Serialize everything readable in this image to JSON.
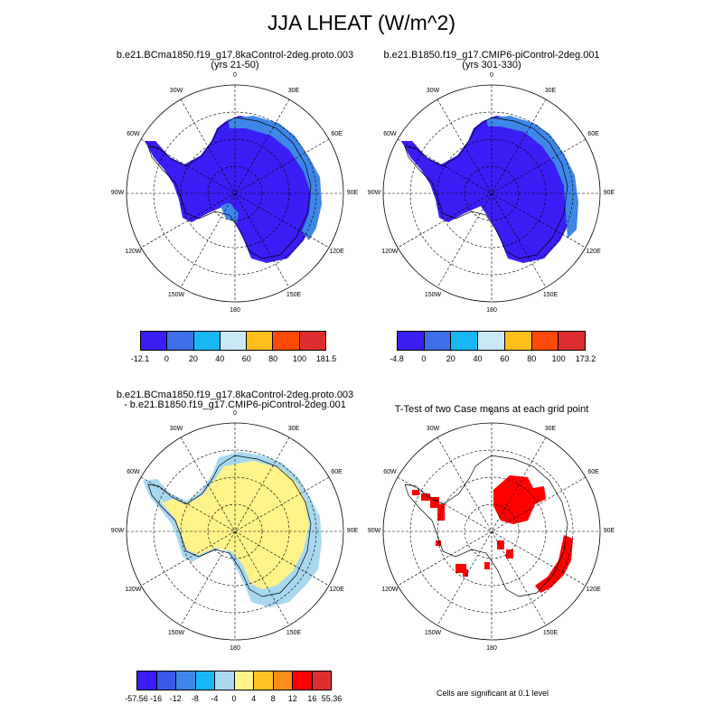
{
  "figure": {
    "title": "JJA LHEAT (W/m^2)",
    "footnote": "Cells are significant at 0.1 level"
  },
  "panels": [
    {
      "id": "case1",
      "title_line1": "b.e21.BCma1850.f19_g17.8kaControl-2deg.proto.003",
      "title_line2": "(yrs 21-50)"
    },
    {
      "id": "case2",
      "title_line1": "b.e21.B1850.f19_g17.CMIP6-piControl-2deg.001",
      "title_line2": "(yrs 301-330)"
    },
    {
      "id": "diff",
      "title_line1": "b.e21.BCma1850.f19_g17.8kaControl-2deg.proto.003",
      "title_line2": "- b.e21.B1850.f19_g17.CMIP6-piControl-2deg.001"
    },
    {
      "id": "ttest",
      "title_line1": "T-Test of two Case means at each grid point",
      "title_line2": ""
    }
  ],
  "longitude_labels": [
    "0",
    "30E",
    "60E",
    "90E",
    "120E",
    "150E",
    "180",
    "150W",
    "120W",
    "90W",
    "60W",
    "30W"
  ],
  "colorbars": [
    {
      "labels": [
        "-12.1",
        "0",
        "20",
        "40",
        "60",
        "80",
        "100",
        "181.5"
      ],
      "colors": [
        "#3a1ef5",
        "#3e6ee8",
        "#18b6f2",
        "#c8e8f8",
        "#ffbf1a",
        "#ff4a06",
        "#dd2f2f"
      ]
    },
    {
      "labels": [
        "-4.8",
        "0",
        "20",
        "40",
        "60",
        "80",
        "100",
        "173.2"
      ],
      "colors": [
        "#3a1ef5",
        "#3e6ee8",
        "#18b6f2",
        "#c8e8f8",
        "#ffbf1a",
        "#ff4a06",
        "#dd2f2f"
      ]
    },
    {
      "labels": [
        "-57.56",
        "-16",
        "-12",
        "-8",
        "-4",
        "0",
        "4",
        "8",
        "12",
        "16",
        "55.36"
      ],
      "colors": [
        "#3a1ef5",
        "#3a5ae8",
        "#3e86e8",
        "#18b6f2",
        "#a8d8f0",
        "#fff38a",
        "#ffc326",
        "#ff8c1a",
        "#ff0000",
        "#dd2f2f"
      ]
    }
  ],
  "colors": {
    "dominant_case": "#3a1ef5",
    "secondary_case": "#3e86e8",
    "diff_positive": "#fff38a",
    "diff_negative": "#a8d8f0",
    "significant": "#ff0000"
  }
}
